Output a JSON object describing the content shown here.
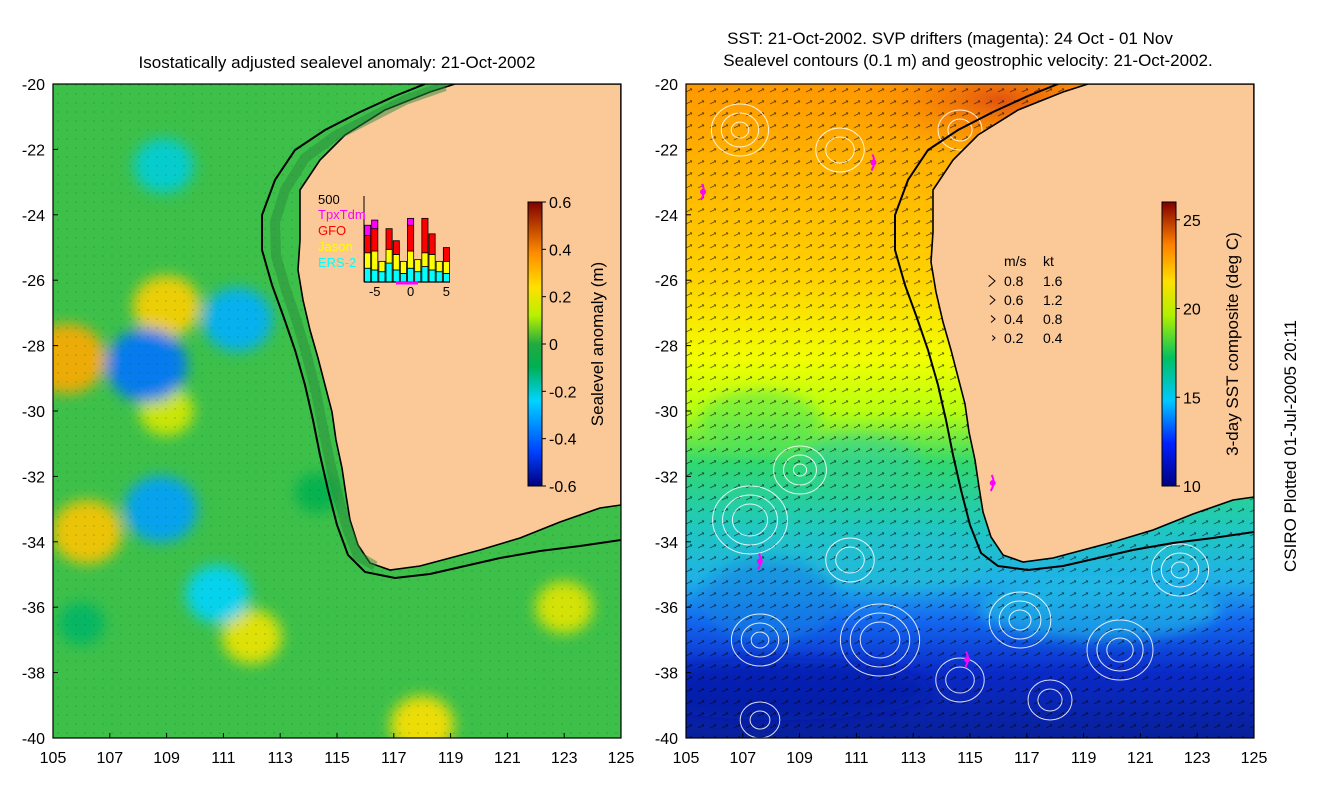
{
  "credit": "CSIRO Plotted 01-Jul-2005 20:11",
  "chart_data": [
    {
      "type": "heatmap",
      "title": "Isostatically adjusted sealevel anomaly: 21-Oct-2002",
      "xlim": [
        105,
        125
      ],
      "ylim": [
        -40,
        -20
      ],
      "x_ticks": [
        "105",
        "107",
        "109",
        "111",
        "113",
        "115",
        "117",
        "119",
        "121",
        "123",
        "125"
      ],
      "y_ticks": [
        "-20",
        "-22",
        "-24",
        "-26",
        "-28",
        "-30",
        "-32",
        "-34",
        "-36",
        "-38",
        "-40"
      ],
      "colorbar": {
        "label": "Sealevel anomaly (m)",
        "range": [
          -0.6,
          0.6
        ],
        "ticks": [
          "0.6",
          "0.4",
          "0.2",
          "0",
          "-0.2",
          "-0.4",
          "-0.6"
        ]
      },
      "blobs": [
        {
          "lon": 105.5,
          "lat": -28.4,
          "v": 0.35
        },
        {
          "lon": 109.0,
          "lat": -26.8,
          "v": 0.28
        },
        {
          "lon": 106.2,
          "lat": -33.7,
          "v": 0.3
        },
        {
          "lon": 112.0,
          "lat": -36.9,
          "v": 0.22
        },
        {
          "lon": 123.0,
          "lat": -36.0,
          "v": 0.2
        },
        {
          "lon": 109.0,
          "lat": -30.0,
          "v": 0.18
        },
        {
          "lon": 108.3,
          "lat": -28.6,
          "v": -0.38
        },
        {
          "lon": 111.5,
          "lat": -27.2,
          "v": -0.3
        },
        {
          "lon": 108.8,
          "lat": -33.0,
          "v": -0.32
        },
        {
          "lon": 110.8,
          "lat": -35.6,
          "v": -0.25
        },
        {
          "lon": 108.9,
          "lat": -22.5,
          "v": -0.22
        },
        {
          "lon": 118.0,
          "lat": -39.6,
          "v": 0.25
        },
        {
          "lon": 106.0,
          "lat": -36.5,
          "v": -0.12
        },
        {
          "lon": 114.3,
          "lat": -32.5,
          "v": -0.1
        }
      ],
      "inset": {
        "ymax_label": "500",
        "x_ticks": [
          "-5",
          "0",
          "5"
        ],
        "legend": [
          {
            "label": "TpxTdm",
            "color": "#ff00ff"
          },
          {
            "label": "GFO",
            "color": "#ff0000"
          },
          {
            "label": "Jason",
            "color": "#ffff00"
          },
          {
            "label": "ERS-2",
            "color": "#00ffff"
          }
        ],
        "days": [
          -6,
          -5,
          -4,
          -3,
          -2,
          -1,
          0,
          1,
          2,
          3,
          4,
          5
        ],
        "series": [
          {
            "name": "ERS-2",
            "values": [
              80,
              70,
              60,
              110,
              70,
              50,
              80,
              60,
              90,
              70,
              60,
              50
            ]
          },
          {
            "name": "Jason",
            "values": [
              90,
              110,
              60,
              80,
              90,
              70,
              100,
              70,
              80,
              90,
              60,
              70
            ]
          },
          {
            "name": "GFO",
            "values": [
              100,
              130,
              0,
              120,
              80,
              0,
              150,
              0,
              200,
              120,
              0,
              80
            ]
          },
          {
            "name": "TpxTdm",
            "values": [
              60,
              50,
              0,
              0,
              0,
              0,
              40,
              0,
              0,
              0,
              0,
              0
            ]
          }
        ]
      }
    },
    {
      "type": "heatmap",
      "title_line1": "SST: 21-Oct-2002. SVP drifters (magenta): 24 Oct - 01 Nov",
      "title_line2": "Sealevel contours (0.1 m) and geostrophic velocity: 21-Oct-2002.",
      "xlim": [
        105,
        125
      ],
      "ylim": [
        -40,
        -20
      ],
      "x_ticks": [
        "105",
        "107",
        "109",
        "111",
        "113",
        "115",
        "117",
        "119",
        "121",
        "123",
        "125"
      ],
      "y_ticks": [
        "-20",
        "-22",
        "-24",
        "-26",
        "-28",
        "-30",
        "-32",
        "-34",
        "-36",
        "-38",
        "-40"
      ],
      "colorbar": {
        "label": "3-day SST composite (deg C)",
        "range": [
          10,
          26
        ],
        "ticks": [
          "25",
          "20",
          "15",
          "10"
        ]
      },
      "velocity_legend": {
        "header_ms": "m/s",
        "header_kt": "kt",
        "rows": [
          {
            "ms": "0.8",
            "kt": "1.6"
          },
          {
            "ms": "0.6",
            "kt": "1.2"
          },
          {
            "ms": "0.4",
            "kt": "0.8"
          },
          {
            "ms": "0.2",
            "kt": "0.4"
          }
        ]
      },
      "drifters": [
        {
          "lon": 105.6,
          "lat": -23.3
        },
        {
          "lon": 111.6,
          "lat": -22.4
        },
        {
          "lon": 115.8,
          "lat": -32.2
        },
        {
          "lon": 107.6,
          "lat": -34.6
        },
        {
          "lon": 114.9,
          "lat": -37.6
        }
      ]
    }
  ]
}
